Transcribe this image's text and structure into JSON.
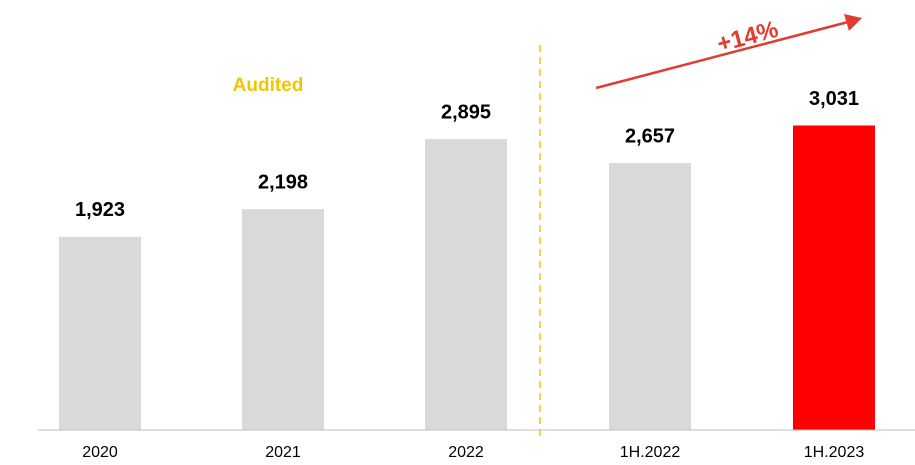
{
  "chart_data": {
    "type": "bar",
    "categories": [
      "2020",
      "2021",
      "2022",
      "1H.2022",
      "1H.2023"
    ],
    "values": [
      1923,
      2198,
      2895,
      2657,
      3031
    ],
    "value_labels": [
      "1,923",
      "2,198",
      "2,895",
      "2,657",
      "3,031"
    ],
    "colors": [
      "#d9d9d9",
      "#d9d9d9",
      "#d9d9d9",
      "#d9d9d9",
      "#ff0000"
    ],
    "ylim": [
      0,
      4280
    ],
    "annotations": [
      "Audited",
      "+14%"
    ]
  }
}
